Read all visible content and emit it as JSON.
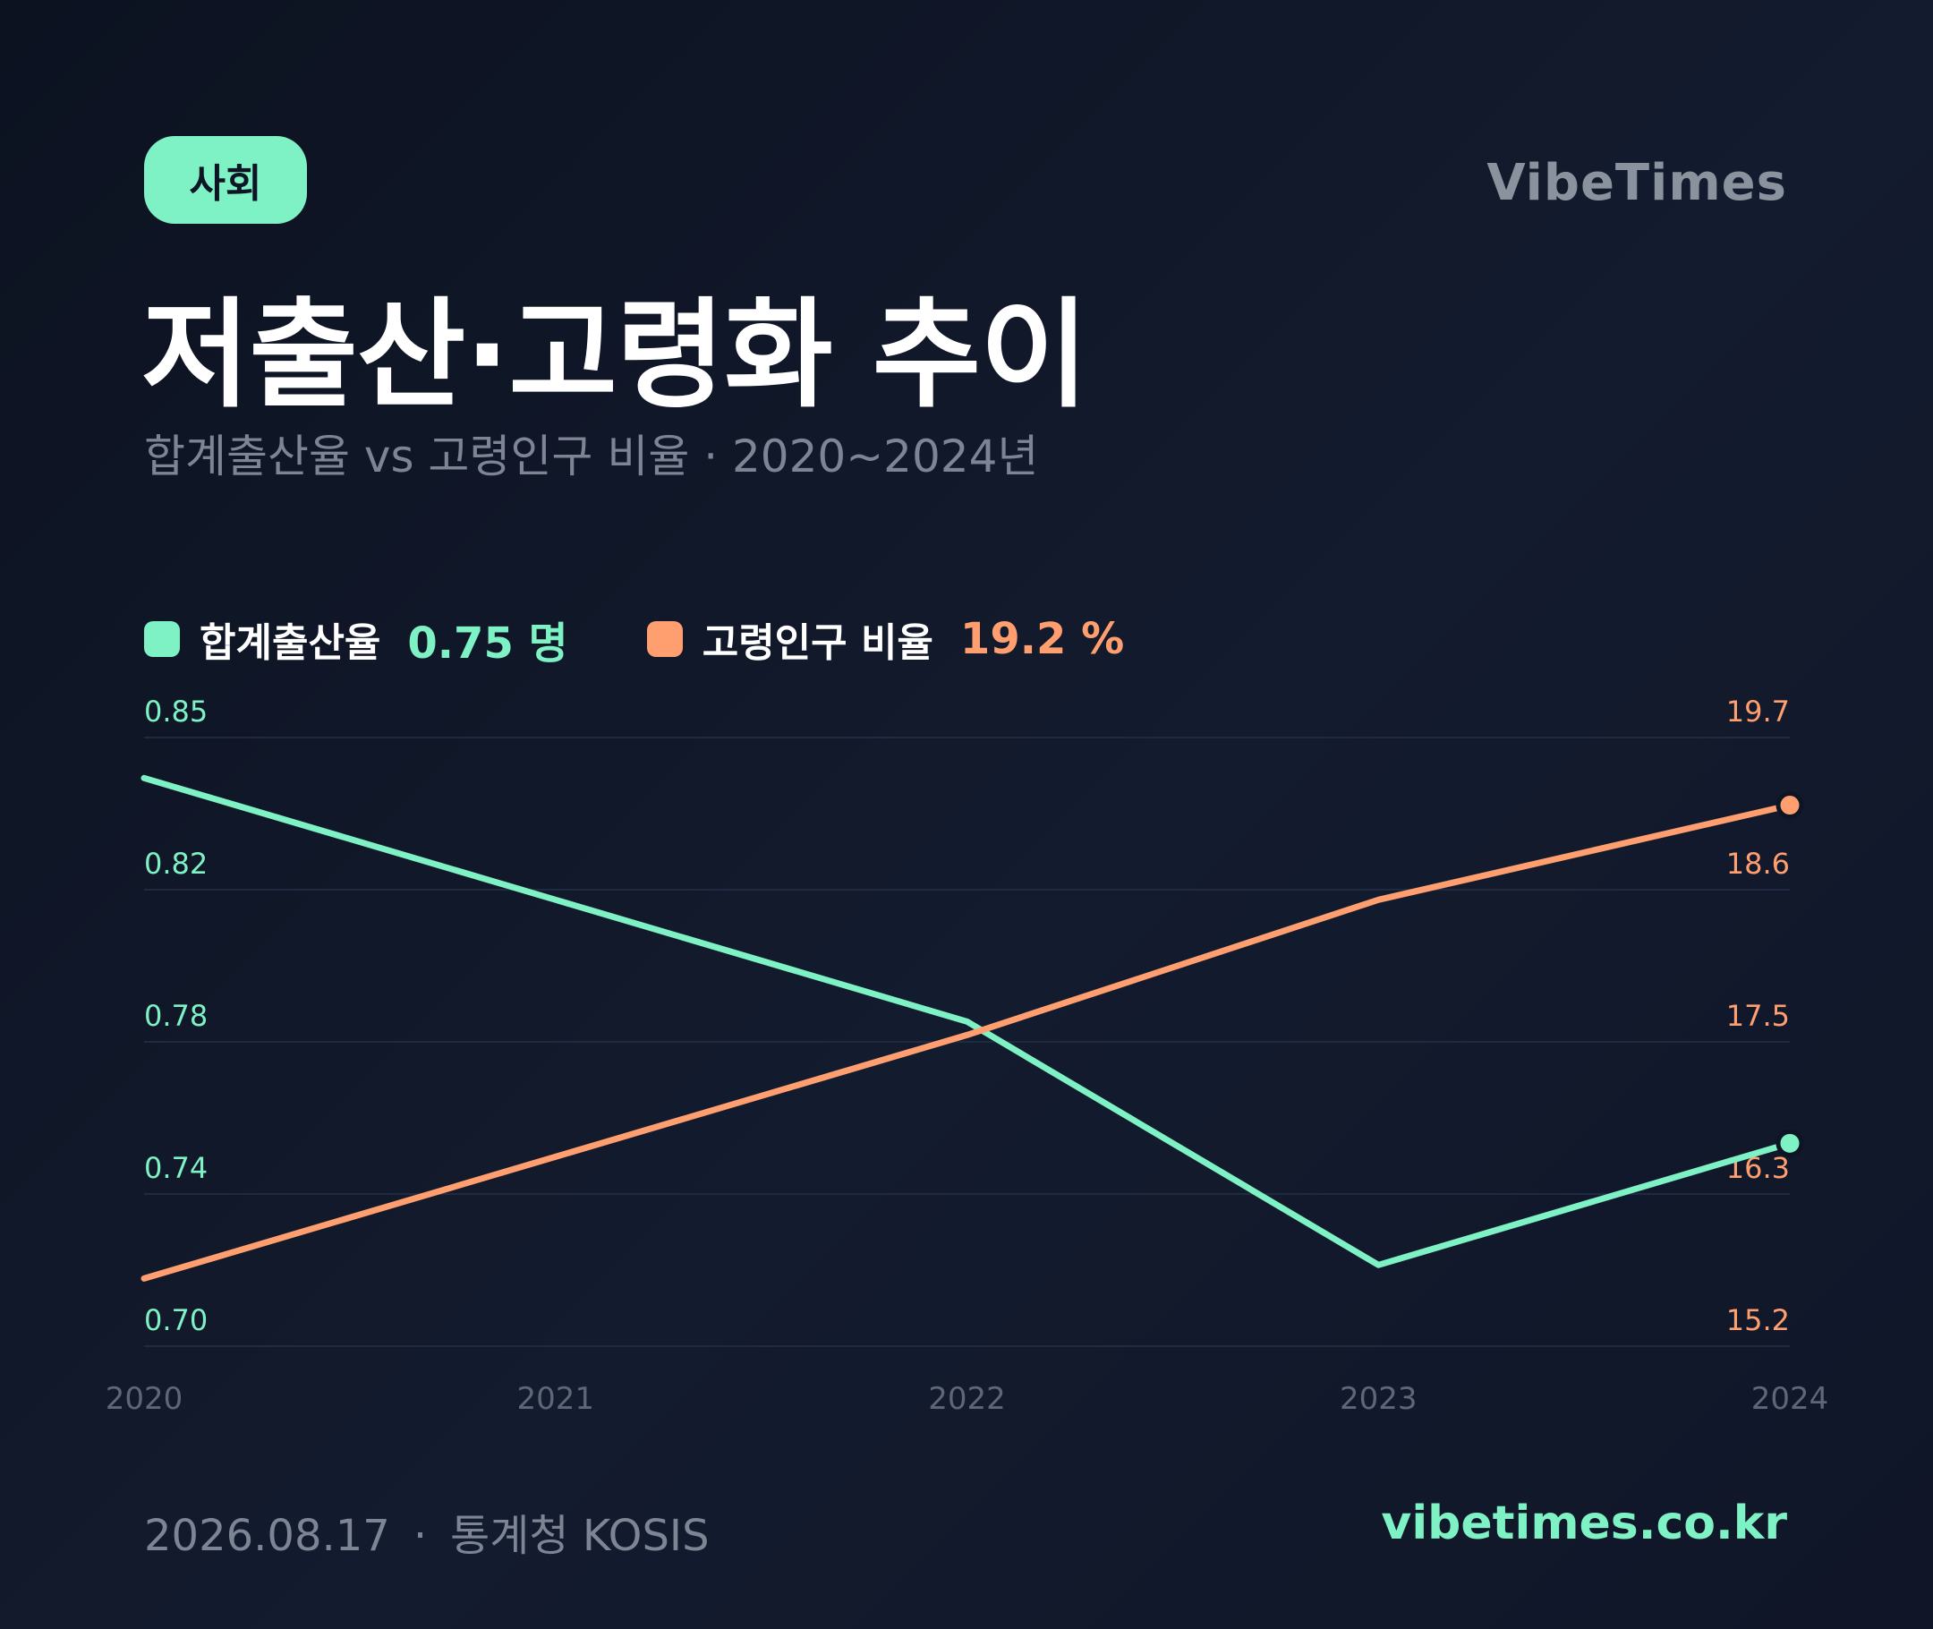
{
  "header": {
    "badge_label": "사회",
    "brand": "VibeTimes",
    "title": "저출산·고령화 추이",
    "subtitle": "합계출산율 vs 고령인구 비율 · 2020~2024년"
  },
  "legend": [
    {
      "label": "합계출산율",
      "value": "0.75 명",
      "color": "#7ef2c4"
    },
    {
      "label": "고령인구 비율",
      "value": "19.2 %",
      "color": "#ff9f70"
    }
  ],
  "chart_data": {
    "type": "line",
    "x": [
      "2020",
      "2021",
      "2022",
      "2023",
      "2024"
    ],
    "series": [
      {
        "name": "합계출산율",
        "axis": "left",
        "color": "#7ef2c4",
        "values": [
          0.84,
          0.81,
          0.78,
          0.72,
          0.75
        ]
      },
      {
        "name": "고령인구 비율",
        "axis": "right",
        "color": "#ff9f70",
        "values": [
          15.7,
          16.6,
          17.5,
          18.5,
          19.2
        ]
      }
    ],
    "y_left": {
      "ticks": [
        "0.85",
        "0.82",
        "0.78",
        "0.74",
        "0.70"
      ],
      "range": [
        0.7,
        0.85
      ]
    },
    "y_right": {
      "ticks": [
        "19.7",
        "18.6",
        "17.5",
        "16.3",
        "15.2"
      ],
      "range": [
        15.2,
        19.7
      ]
    },
    "grid": true,
    "legend": "top-left"
  },
  "footer": {
    "date": "2026.08.17",
    "separator": "·",
    "source": "통계청 KOSIS",
    "site": "vibetimes.co.kr"
  }
}
